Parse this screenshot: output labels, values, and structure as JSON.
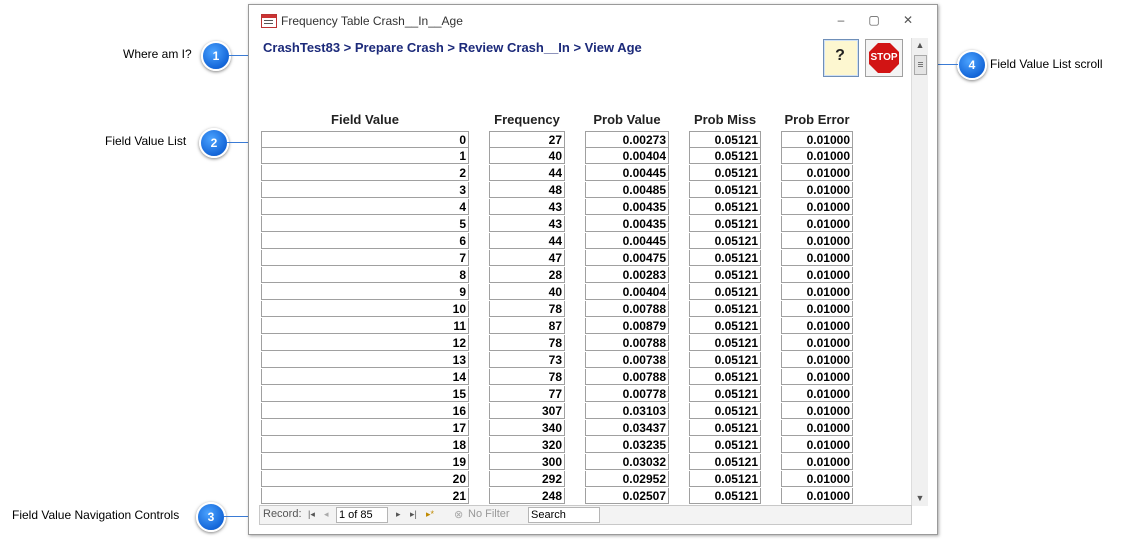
{
  "callouts": [
    {
      "number": "1",
      "label": "Where am I?"
    },
    {
      "number": "2",
      "label": "Field Value List"
    },
    {
      "number": "3",
      "label": "Field Value Navigation Controls"
    },
    {
      "number": "4",
      "label": "Field Value List scroll"
    }
  ],
  "window": {
    "title": "Frequency Table Crash__In__Age",
    "breadcrumb": "CrashTest83 > Prepare Crash > Review Crash__In > View Age",
    "help_icon": "question-mark-icon",
    "stop_label": "STOP",
    "minimize_glyph": "–",
    "restore_glyph": "▢",
    "close_glyph": "✕"
  },
  "columns": [
    "Field Value",
    "Frequency",
    "Prob Value",
    "Prob Miss",
    "Prob Error"
  ],
  "rows": [
    [
      "0",
      "27",
      "0.00273",
      "0.05121",
      "0.01000"
    ],
    [
      "1",
      "40",
      "0.00404",
      "0.05121",
      "0.01000"
    ],
    [
      "2",
      "44",
      "0.00445",
      "0.05121",
      "0.01000"
    ],
    [
      "3",
      "48",
      "0.00485",
      "0.05121",
      "0.01000"
    ],
    [
      "4",
      "43",
      "0.00435",
      "0.05121",
      "0.01000"
    ],
    [
      "5",
      "43",
      "0.00435",
      "0.05121",
      "0.01000"
    ],
    [
      "6",
      "44",
      "0.00445",
      "0.05121",
      "0.01000"
    ],
    [
      "7",
      "47",
      "0.00475",
      "0.05121",
      "0.01000"
    ],
    [
      "8",
      "28",
      "0.00283",
      "0.05121",
      "0.01000"
    ],
    [
      "9",
      "40",
      "0.00404",
      "0.05121",
      "0.01000"
    ],
    [
      "10",
      "78",
      "0.00788",
      "0.05121",
      "0.01000"
    ],
    [
      "11",
      "87",
      "0.00879",
      "0.05121",
      "0.01000"
    ],
    [
      "12",
      "78",
      "0.00788",
      "0.05121",
      "0.01000"
    ],
    [
      "13",
      "73",
      "0.00738",
      "0.05121",
      "0.01000"
    ],
    [
      "14",
      "78",
      "0.00788",
      "0.05121",
      "0.01000"
    ],
    [
      "15",
      "77",
      "0.00778",
      "0.05121",
      "0.01000"
    ],
    [
      "16",
      "307",
      "0.03103",
      "0.05121",
      "0.01000"
    ],
    [
      "17",
      "340",
      "0.03437",
      "0.05121",
      "0.01000"
    ],
    [
      "18",
      "320",
      "0.03235",
      "0.05121",
      "0.01000"
    ],
    [
      "19",
      "300",
      "0.03032",
      "0.05121",
      "0.01000"
    ],
    [
      "20",
      "292",
      "0.02952",
      "0.05121",
      "0.01000"
    ],
    [
      "21",
      "248",
      "0.02507",
      "0.05121",
      "0.01000"
    ]
  ],
  "navigation": {
    "record_label": "Record:",
    "record_value": "1 of 85",
    "first_glyph": "|◂",
    "prev_glyph": "◂",
    "next_glyph": "▸",
    "last_glyph": "▸|",
    "new_glyph": "▸*",
    "filter_label": "No Filter",
    "search_placeholder": "Search"
  },
  "colors": {
    "accent": "#1466d8",
    "breadcrumb": "#1c2a7a",
    "stop": "#d21414"
  }
}
